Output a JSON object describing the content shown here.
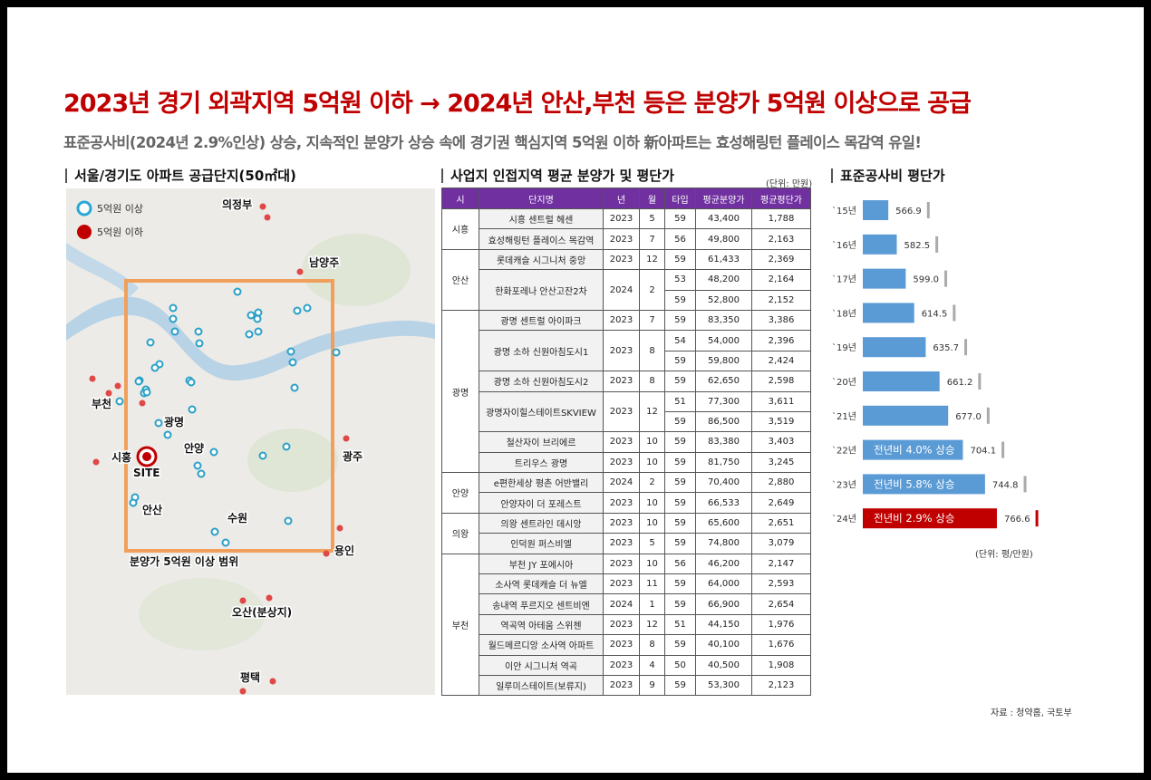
{
  "header": {
    "title": "2023년 경기 외곽지역 5억원 이하 → 2024년 안산,부천 등은 분양가 5억원 이상으로 공급",
    "subtitle": "표준공사비(2024년 2.9%인상) 상승, 지속적인 분양가 상승 속에 경기권 핵심지역 5억원 이하 新아파트는 효성해링턴 플레이스 목감역 유일!"
  },
  "map": {
    "title": "서울/경기도 아파트 공급단지(50㎡대)",
    "legend": [
      "5억원 이상",
      "5억원 이하"
    ],
    "labels": [
      "의정부",
      "남양주",
      "부천",
      "광명",
      "시흥",
      "SITE",
      "안양",
      "광주",
      "안산",
      "수원",
      "용인",
      "분양가 5억원 이상 범위",
      "오산(분상지)",
      "평택"
    ]
  },
  "table": {
    "title": "사업지 인접지역 평균 분양가 및 평단가",
    "unit": "(단위: 만원)",
    "header": [
      "시",
      "단지명",
      "년",
      "월",
      "타입",
      "평균분양가",
      "평균평단가"
    ],
    "groups": [
      {
        "city": "시흥",
        "complexes": [
          {
            "name": "시흥 센트럴 헤센",
            "year": "2023",
            "month": "5",
            "types": [
              {
                "type": "59",
                "price": "43,400",
                "per_pyeong": "1,788"
              }
            ]
          },
          {
            "name": "효성해링턴 플레이스 목감역",
            "year": "2023",
            "month": "7",
            "types": [
              {
                "type": "56",
                "price": "49,800",
                "per_pyeong": "2,163"
              }
            ]
          }
        ]
      },
      {
        "city": "안산",
        "complexes": [
          {
            "name": "롯데캐슬 시그니처 중앙",
            "year": "2023",
            "month": "12",
            "types": [
              {
                "type": "59",
                "price": "61,433",
                "per_pyeong": "2,369"
              }
            ]
          },
          {
            "name": "한화포레나 안산고잔2차",
            "year": "2024",
            "month": "2",
            "types": [
              {
                "type": "53",
                "price": "48,200",
                "per_pyeong": "2,164"
              },
              {
                "type": "59",
                "price": "52,800",
                "per_pyeong": "2,152"
              }
            ]
          }
        ]
      },
      {
        "city": "광명",
        "complexes": [
          {
            "name": "광명 센트럴 아이파크",
            "year": "2023",
            "month": "7",
            "types": [
              {
                "type": "59",
                "price": "83,350",
                "per_pyeong": "3,386"
              }
            ]
          },
          {
            "name": "광명 소하 신원아침도시1",
            "year": "2023",
            "month": "8",
            "types": [
              {
                "type": "54",
                "price": "54,000",
                "per_pyeong": "2,396"
              },
              {
                "type": "59",
                "price": "59,800",
                "per_pyeong": "2,424"
              }
            ]
          },
          {
            "name": "광명 소하 신원아침도시2",
            "year": "2023",
            "month": "8",
            "types": [
              {
                "type": "59",
                "price": "62,650",
                "per_pyeong": "2,598"
              }
            ]
          },
          {
            "name": "광명자이힐스테이트SKVIEW",
            "year": "2023",
            "month": "12",
            "types": [
              {
                "type": "51",
                "price": "77,300",
                "per_pyeong": "3,611"
              },
              {
                "type": "59",
                "price": "86,500",
                "per_pyeong": "3,519"
              }
            ]
          },
          {
            "name": "철산자이 브리에르",
            "year": "2023",
            "month": "10",
            "types": [
              {
                "type": "59",
                "price": "83,380",
                "per_pyeong": "3,403"
              }
            ]
          },
          {
            "name": "트리우스 광명",
            "year": "2023",
            "month": "10",
            "types": [
              {
                "type": "59",
                "price": "81,750",
                "per_pyeong": "3,245"
              }
            ]
          }
        ]
      },
      {
        "city": "안양",
        "complexes": [
          {
            "name": "e편한세상 평촌 어반밸리",
            "year": "2024",
            "month": "2",
            "types": [
              {
                "type": "59",
                "price": "70,400",
                "per_pyeong": "2,880"
              }
            ]
          },
          {
            "name": "안양자이 더 포레스트",
            "year": "2023",
            "month": "10",
            "types": [
              {
                "type": "59",
                "price": "66,533",
                "per_pyeong": "2,649"
              }
            ]
          }
        ]
      },
      {
        "city": "의왕",
        "complexes": [
          {
            "name": "의왕 센트라인 데시앙",
            "year": "2023",
            "month": "10",
            "types": [
              {
                "type": "59",
                "price": "65,600",
                "per_pyeong": "2,651"
              }
            ]
          },
          {
            "name": "인덕원 퍼스비엘",
            "year": "2023",
            "month": "5",
            "types": [
              {
                "type": "59",
                "price": "74,800",
                "per_pyeong": "3,079"
              }
            ]
          }
        ]
      },
      {
        "city": "부천",
        "complexes": [
          {
            "name": "부천 JY 포에시아",
            "year": "2023",
            "month": "10",
            "types": [
              {
                "type": "56",
                "price": "46,200",
                "per_pyeong": "2,147"
              }
            ]
          },
          {
            "name": "소사역 롯데캐슬 더 뉴엘",
            "year": "2023",
            "month": "11",
            "types": [
              {
                "type": "59",
                "price": "64,000",
                "per_pyeong": "2,593"
              }
            ]
          },
          {
            "name": "송내역 푸르지오 센트비엔",
            "year": "2024",
            "month": "1",
            "types": [
              {
                "type": "59",
                "price": "66,900",
                "per_pyeong": "2,654"
              }
            ]
          },
          {
            "name": "역곡역 아테움 스위첸",
            "year": "2023",
            "month": "12",
            "types": [
              {
                "type": "51",
                "price": "44,150",
                "per_pyeong": "1,976"
              }
            ]
          },
          {
            "name": "월드메르디앙 소사역 아파트",
            "year": "2023",
            "month": "8",
            "types": [
              {
                "type": "59",
                "price": "40,100",
                "per_pyeong": "1,676"
              }
            ]
          },
          {
            "name": "이안 시그니처 역곡",
            "year": "2023",
            "month": "4",
            "types": [
              {
                "type": "50",
                "price": "40,500",
                "per_pyeong": "1,908"
              }
            ]
          },
          {
            "name": "일루미스테이트(보류지)",
            "year": "2023",
            "month": "9",
            "types": [
              {
                "type": "59",
                "price": "53,300",
                "per_pyeong": "2,123"
              }
            ]
          }
        ]
      }
    ]
  },
  "chart_data": {
    "type": "bar",
    "orientation": "horizontal",
    "title": "표준공사비 평단가",
    "unit": "(단위: 평/만원)",
    "categories": [
      "`15년",
      "`16년",
      "`17년",
      "`18년",
      "`19년",
      "`20년",
      "`21년",
      "`22년",
      "`23년",
      "`24년"
    ],
    "values": [
      566.9,
      582.5,
      599.0,
      614.5,
      635.7,
      661.2,
      677.0,
      704.1,
      744.8,
      766.6
    ],
    "value_labels": [
      "566.9",
      "582.5",
      "599.0",
      "614.5",
      "635.7",
      "661.2",
      "677.0",
      "704.1",
      "744.8",
      "766.6"
    ],
    "annotations": [
      null,
      null,
      null,
      null,
      null,
      null,
      null,
      "전년비 4.0% 상승",
      "전년비 5.8% 상승",
      "전년비 2.9% 상승"
    ],
    "colors": [
      "#5b9bd5",
      "#5b9bd5",
      "#5b9bd5",
      "#5b9bd5",
      "#5b9bd5",
      "#5b9bd5",
      "#5b9bd5",
      "#5b9bd5",
      "#5b9bd5",
      "#c00000"
    ],
    "xlim": [
      520,
      800
    ]
  },
  "source": "자료 : 청약홈, 국토부"
}
